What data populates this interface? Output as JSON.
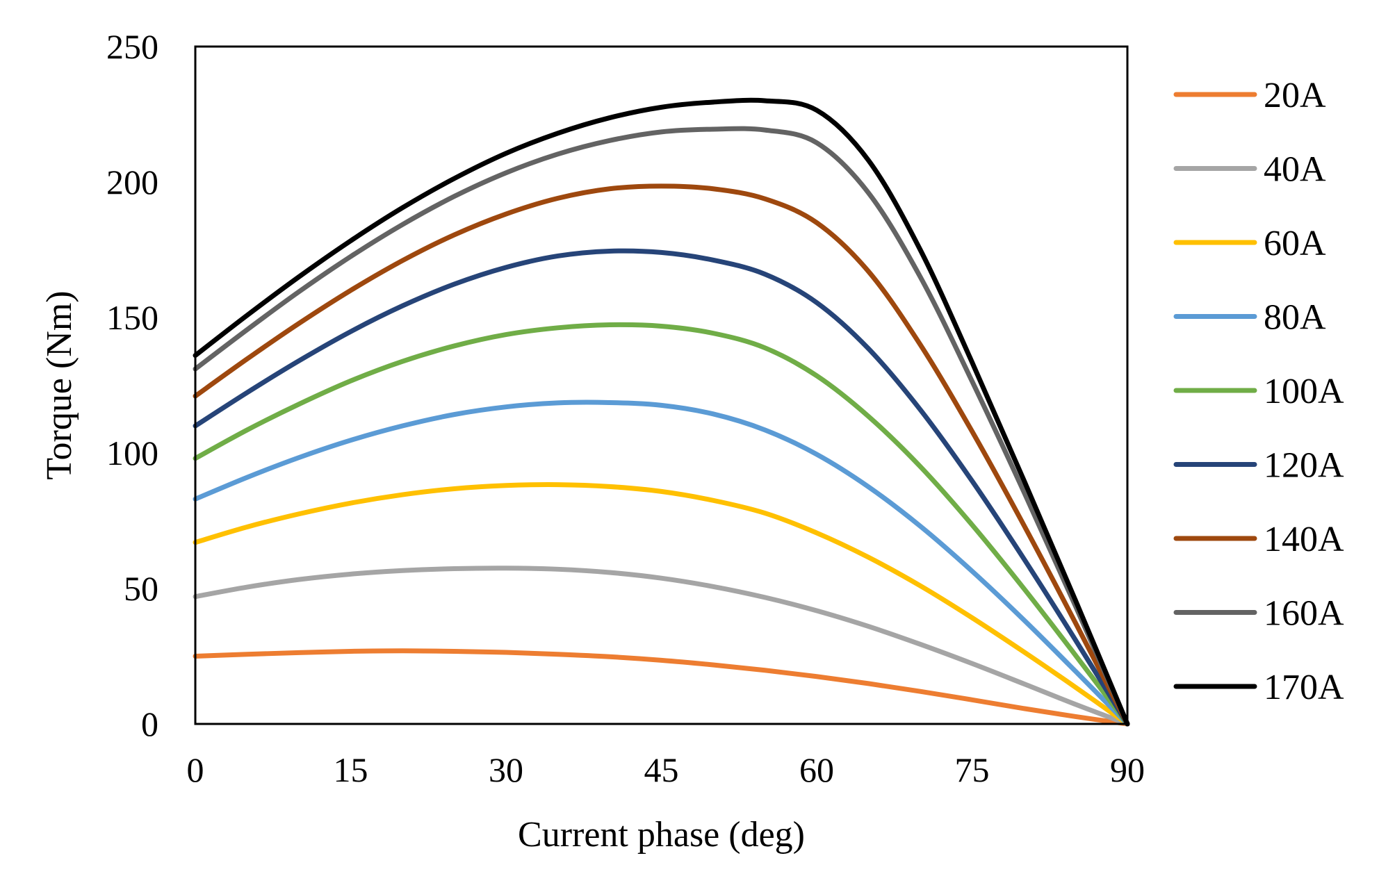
{
  "chart_data": {
    "type": "line",
    "title": "",
    "xlabel": "Current phase (deg)",
    "ylabel": "Torque (Nm)",
    "xlim": [
      0,
      90
    ],
    "ylim": [
      0,
      250
    ],
    "x_ticks": [
      0,
      15,
      30,
      45,
      60,
      75,
      90
    ],
    "y_ticks": [
      0,
      50,
      100,
      150,
      200,
      250
    ],
    "x_tick_labels": [
      "0",
      "15",
      "30",
      "45",
      "60",
      "75",
      "90"
    ],
    "y_tick_labels": [
      "0",
      "50",
      "100",
      "150",
      "200",
      "250"
    ],
    "grid": false,
    "legend_position": "right",
    "x": [
      0,
      5,
      10,
      15,
      20,
      25,
      30,
      35,
      40,
      45,
      50,
      55,
      60,
      65,
      70,
      75,
      80,
      85,
      90
    ],
    "series": [
      {
        "name": "20A",
        "color": "#ED7D31",
        "values": [
          25,
          25.7,
          26.3,
          26.8,
          27,
          26.8,
          26.4,
          25.7,
          24.8,
          23.5,
          21.8,
          19.8,
          17.5,
          14.9,
          12,
          8.9,
          5.7,
          2.7,
          0
        ]
      },
      {
        "name": "40A",
        "color": "#A5A5A5",
        "values": [
          47,
          50.5,
          53.3,
          55.3,
          56.6,
          57.3,
          57.5,
          57.1,
          55.9,
          53.8,
          50.7,
          46.7,
          41.8,
          36,
          29.4,
          22.3,
          14.8,
          7.2,
          0
        ]
      },
      {
        "name": "60A",
        "color": "#FFC000",
        "values": [
          67,
          72.7,
          77.5,
          81.5,
          84.6,
          86.8,
          88,
          88.3,
          87.6,
          85.8,
          82.5,
          77.8,
          70.5,
          61.5,
          51,
          39.2,
          26.6,
          13.5,
          0
        ]
      },
      {
        "name": "80A",
        "color": "#5B9BD5",
        "values": [
          83,
          91,
          98.3,
          104.7,
          110,
          114.2,
          117,
          118.5,
          118.6,
          117.6,
          114.4,
          108.5,
          99.5,
          87.5,
          73,
          56.4,
          38.4,
          19.4,
          0
        ]
      },
      {
        "name": "100A",
        "color": "#70AD47",
        "values": [
          98,
          108.5,
          118,
          126.6,
          133.8,
          139.5,
          143.7,
          146.2,
          147.3,
          146.8,
          144.2,
          138.8,
          128.5,
          113.5,
          95,
          73.5,
          50,
          25.3,
          0
        ]
      },
      {
        "name": "120A",
        "color": "#264478",
        "values": [
          110,
          122.3,
          134,
          144.8,
          154.3,
          162.3,
          168.5,
          172.7,
          174.5,
          174,
          171.2,
          166,
          155.5,
          138.5,
          116,
          89.7,
          61,
          30.9,
          0
        ]
      },
      {
        "name": "140A",
        "color": "#9E480E",
        "values": [
          121,
          134.7,
          147.8,
          160,
          171,
          180.5,
          188.2,
          194,
          197.5,
          198.5,
          197.5,
          193.8,
          185,
          167,
          140,
          108,
          73.4,
          37.2,
          0
        ]
      },
      {
        "name": "160A",
        "color": "#636363",
        "values": [
          131,
          145.5,
          159.5,
          172.5,
          184.3,
          194.7,
          203.4,
          210.3,
          215.3,
          218.5,
          219.5,
          219.2,
          214.5,
          196,
          165,
          126.5,
          85.7,
          43.4,
          0
        ]
      },
      {
        "name": "170A",
        "color": "#000000",
        "values": [
          136,
          150.8,
          165,
          178.3,
          190.5,
          201.3,
          210.6,
          218,
          223.7,
          227.6,
          229.5,
          230,
          226.5,
          208,
          175,
          133.5,
          90,
          45.5,
          0
        ]
      }
    ]
  }
}
